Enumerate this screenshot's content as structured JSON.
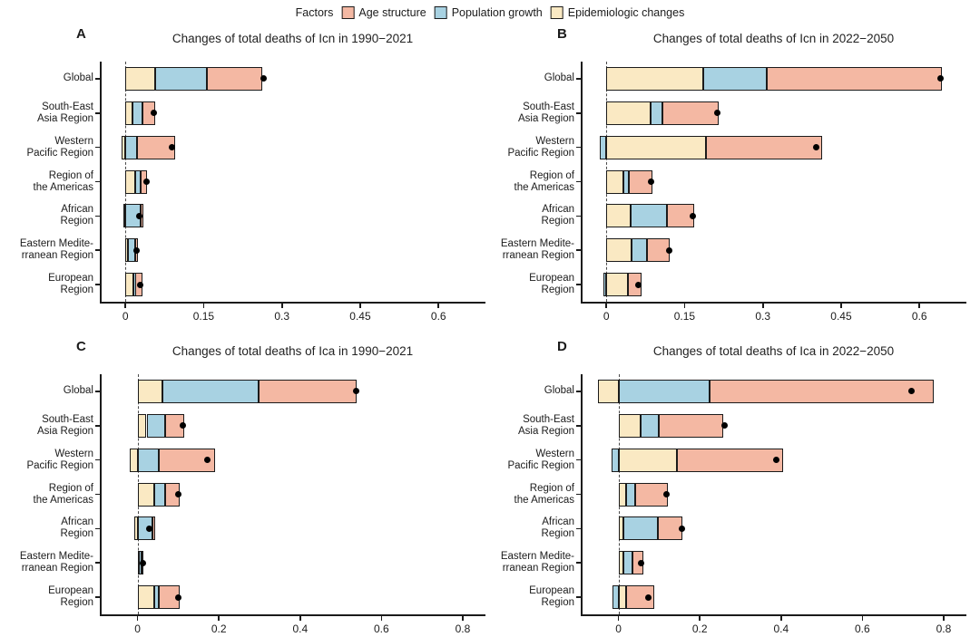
{
  "legend": {
    "title": "Factors",
    "items": [
      {
        "label": "Age structure",
        "color": "#F4B8A3"
      },
      {
        "label": "Population growth",
        "color": "#A8D2E2"
      },
      {
        "label": "Epidemiologic changes",
        "color": "#FAE9C3"
      }
    ]
  },
  "colors": {
    "age_structure": "#F4B8A3",
    "population_growth": "#A8D2E2",
    "epidemiologic_changes": "#FAE9C3",
    "net_dot": "#000000",
    "axis": "#1b1b1b"
  },
  "chart_data": [
    {
      "type": "bar",
      "panel_label": "A",
      "title": "Changes of total deaths of Icn in 1990−2021",
      "orientation": "horizontal",
      "stack_order_note": "segments stacked from zero in order: epidemiologic, population, age; negatives extend left of zero; black dot = net change",
      "categories": [
        "Global",
        "South-East\nAsia Region",
        "Western\nPacific Region",
        "Region of\nthe Americas",
        "African\nRegion",
        "Eastern Medite-\nrranean Region",
        "European\nRegion"
      ],
      "series": [
        {
          "name": "Epidemiologic changes",
          "color": "#FAE9C3",
          "values": [
            0.057,
            0.013,
            -0.007,
            0.019,
            -0.004,
            0.005,
            0.016
          ]
        },
        {
          "name": "Population growth",
          "color": "#A8D2E2",
          "values": [
            0.1,
            0.02,
            0.022,
            0.01,
            0.03,
            0.014,
            0.003
          ]
        },
        {
          "name": "Age structure",
          "color": "#F4B8A3",
          "values": [
            0.106,
            0.024,
            0.074,
            0.013,
            0.001,
            0.005,
            0.013
          ]
        }
      ],
      "net_change": [
        0.265,
        0.055,
        0.089,
        0.04,
        0.026,
        0.021,
        0.029
      ],
      "tick_values": [
        0,
        0.15,
        0.3,
        0.45,
        0.6
      ],
      "tick_labels": [
        "0",
        "0.15",
        "0.3",
        "0.45",
        "0.6"
      ],
      "xlim": [
        -0.049,
        0.69
      ],
      "grid": false
    },
    {
      "type": "bar",
      "panel_label": "B",
      "title": "Changes of total deaths of Icn in 2022−2050",
      "orientation": "horizontal",
      "categories": [
        "Global",
        "South-East\nAsia Region",
        "Western\nPacific Region",
        "Region of\nthe Americas",
        "African\nRegion",
        "Eastern Medite-\nrranean Region",
        "European\nRegion"
      ],
      "series": [
        {
          "name": "Epidemiologic changes",
          "color": "#FAE9C3",
          "values": [
            0.185,
            0.085,
            0.191,
            0.033,
            0.046,
            0.049,
            0.041
          ]
        },
        {
          "name": "Population growth",
          "color": "#A8D2E2",
          "values": [
            0.123,
            0.023,
            -0.012,
            0.01,
            0.07,
            0.029,
            -0.006
          ]
        },
        {
          "name": "Age structure",
          "color": "#F4B8A3",
          "values": [
            0.335,
            0.107,
            0.223,
            0.046,
            0.052,
            0.043,
            0.027
          ]
        }
      ],
      "net_change": [
        0.64,
        0.212,
        0.402,
        0.086,
        0.166,
        0.121,
        0.062
      ],
      "tick_values": [
        0,
        0.15,
        0.3,
        0.45,
        0.6
      ],
      "tick_labels": [
        "0",
        "0.15",
        "0.3",
        "0.45",
        "0.6"
      ],
      "xlim": [
        -0.049,
        0.69
      ],
      "grid": false
    },
    {
      "type": "bar",
      "panel_label": "C",
      "title": "Changes of total deaths of Ica in 1990−2021",
      "orientation": "horizontal",
      "categories": [
        "Global",
        "South-East\nAsia Region",
        "Western\nPacific Region",
        "Region of\nthe Americas",
        "African\nRegion",
        "Eastern Medite-\nrranean Region",
        "European\nRegion"
      ],
      "series": [
        {
          "name": "Epidemiologic changes",
          "color": "#FAE9C3",
          "values": [
            0.062,
            0.022,
            -0.019,
            0.041,
            -0.009,
            0.002,
            0.041
          ]
        },
        {
          "name": "Population growth",
          "color": "#A8D2E2",
          "values": [
            0.236,
            0.045,
            0.052,
            0.026,
            0.037,
            0.007,
            0.011
          ]
        },
        {
          "name": "Age structure",
          "color": "#F4B8A3",
          "values": [
            0.242,
            0.048,
            0.138,
            0.037,
            0.001,
            0.004,
            0.052
          ]
        }
      ],
      "net_change": [
        0.538,
        0.112,
        0.171,
        0.1,
        0.028,
        0.013,
        0.1
      ],
      "tick_values": [
        0,
        0.2,
        0.4,
        0.6,
        0.8
      ],
      "tick_labels": [
        "0",
        "0.2",
        "0.4",
        "0.6",
        "0.8"
      ],
      "xlim": [
        -0.093,
        0.856
      ],
      "grid": false
    },
    {
      "type": "bar",
      "panel_label": "D",
      "title": "Changes of total deaths of Ica in 2022−2050",
      "orientation": "horizontal",
      "categories": [
        "Global",
        "South-East\nAsia Region",
        "Western\nPacific Region",
        "Region of\nthe Americas",
        "African\nRegion",
        "Eastern Medite-\nrranean Region",
        "European\nRegion"
      ],
      "series": [
        {
          "name": "Epidemiologic changes",
          "color": "#FAE9C3",
          "values": [
            -0.05,
            0.054,
            0.143,
            0.019,
            0.011,
            0.013,
            0.019
          ]
        },
        {
          "name": "Population growth",
          "color": "#A8D2E2",
          "values": [
            0.223,
            0.045,
            -0.017,
            0.023,
            0.086,
            0.021,
            -0.014
          ]
        },
        {
          "name": "Age structure",
          "color": "#F4B8A3",
          "values": [
            0.552,
            0.158,
            0.261,
            0.08,
            0.059,
            0.026,
            0.068
          ]
        }
      ],
      "net_change": [
        0.72,
        0.26,
        0.388,
        0.119,
        0.156,
        0.055,
        0.073
      ],
      "tick_values": [
        0,
        0.2,
        0.4,
        0.6,
        0.8
      ],
      "tick_labels": [
        "0",
        "0.2",
        "0.4",
        "0.6",
        "0.8"
      ],
      "xlim": [
        -0.093,
        0.856
      ],
      "grid": false
    }
  ]
}
